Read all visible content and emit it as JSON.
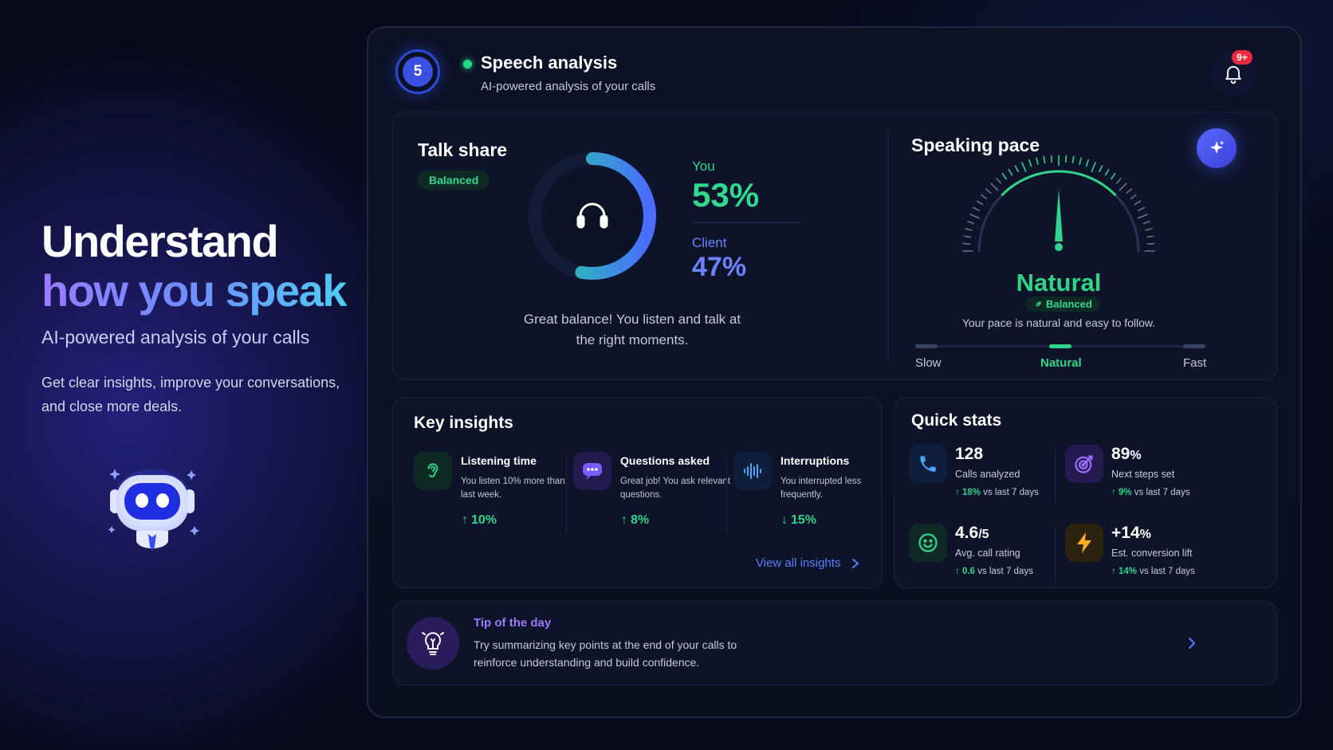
{
  "hero": {
    "title_line1": "Understand",
    "title_line2": "how you speak",
    "subtitle": "AI-powered analysis of your calls",
    "description": "Get clear insights, improve your conversations, and close more deals."
  },
  "header": {
    "step": "5",
    "title": "Speech analysis",
    "subtitle": "AI-powered analysis of your calls",
    "notifications_badge": "9+"
  },
  "talk_share": {
    "title": "Talk share",
    "badge": "Balanced",
    "you_label": "You",
    "you_value": "53%",
    "client_label": "Client",
    "client_value": "47%",
    "you_fraction": 0.53,
    "message": "Great balance! You listen and talk at the right moments."
  },
  "speaking_pace": {
    "title": "Speaking pace",
    "value": "Natural",
    "badge": "Balanced",
    "message": "Your pace is natural and easy to follow.",
    "scale": [
      "Slow",
      "Natural",
      "Fast"
    ],
    "level": 0.5
  },
  "key_insights": {
    "title": "Key insights",
    "items": [
      {
        "icon": "ear-icon",
        "name": "Listening time",
        "desc": "You listen 10% more than last week.",
        "delta": "10%",
        "direction": "up"
      },
      {
        "icon": "chat-bubble-icon",
        "name": "Questions asked",
        "desc": "Great job! You ask relevant questions.",
        "delta": "8%",
        "direction": "up"
      },
      {
        "icon": "sound-wave-icon",
        "name": "Interruptions",
        "desc": "You interrupted less frequently.",
        "delta": "15%",
        "direction": "down"
      }
    ],
    "view_all": "View all insights"
  },
  "quick_stats": {
    "title": "Quick stats",
    "items": [
      {
        "icon": "phone-icon",
        "value": "128",
        "unit": "",
        "label": "Calls analyzed",
        "delta": "18%",
        "delta_suffix": "vs last 7 days"
      },
      {
        "icon": "target-icon",
        "value": "89",
        "unit": "%",
        "label": "Next steps set",
        "delta": "9%",
        "delta_suffix": "vs last 7 days"
      },
      {
        "icon": "smiley-icon",
        "value": "4.6",
        "unit": "/5",
        "label": "Avg. call rating",
        "delta": "0.6",
        "delta_suffix": "vs last 7 days"
      },
      {
        "icon": "lightning-icon",
        "value": "+14",
        "unit": "%",
        "label": "Est. conversion lift",
        "delta": "14%",
        "delta_suffix": "vs last 7 days"
      }
    ]
  },
  "tip": {
    "title": "Tip of the day",
    "text": "Try summarizing key points at the end of your calls to reinforce understanding and build confidence."
  },
  "colors": {
    "green": "#30d58b",
    "blue": "#6b83ff",
    "purple": "#9f7bff",
    "background": "#070a1c"
  }
}
